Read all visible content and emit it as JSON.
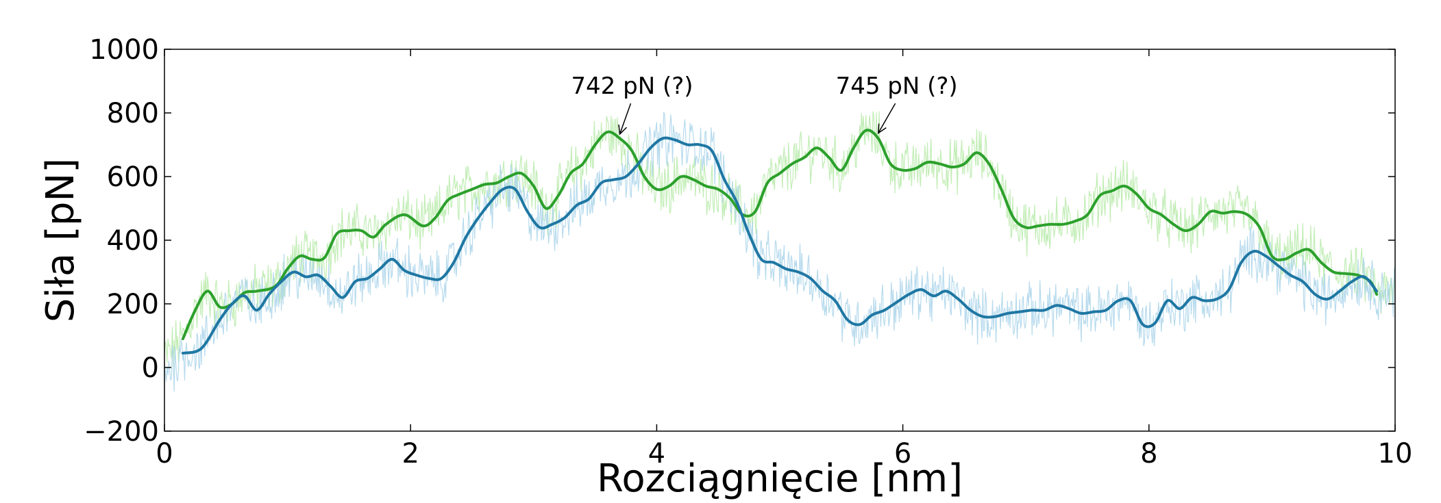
{
  "chart_data": {
    "type": "line",
    "title": "",
    "xlabel": "Rozciągnięcie [nm]",
    "ylabel": "Siła [pN]",
    "xlim": [
      0,
      10
    ],
    "ylim": [
      -200,
      1000
    ],
    "xticks": [
      0,
      2,
      4,
      6,
      8,
      10
    ],
    "xtick_labels": [
      "0",
      "2",
      "4",
      "6",
      "8",
      "10"
    ],
    "yticks": [
      -200,
      0,
      200,
      400,
      600,
      800,
      1000
    ],
    "ytick_labels": [
      "−200",
      "0",
      "200",
      "400",
      "600",
      "800",
      "1000"
    ],
    "grid": false,
    "legend": "none",
    "series": [
      {
        "color": "#2ca02c",
        "raw_color": "#b6eaa8",
        "x": [
          0.15,
          0.25,
          0.35,
          0.45,
          0.55,
          0.65,
          0.75,
          0.9,
          1.0,
          1.1,
          1.2,
          1.3,
          1.4,
          1.5,
          1.6,
          1.7,
          1.8,
          1.95,
          2.1,
          2.2,
          2.3,
          2.4,
          2.5,
          2.6,
          2.7,
          2.8,
          2.9,
          3.0,
          3.1,
          3.2,
          3.3,
          3.4,
          3.5,
          3.6,
          3.7,
          3.8,
          3.9,
          4.0,
          4.1,
          4.2,
          4.3,
          4.4,
          4.5,
          4.6,
          4.7,
          4.8,
          4.9,
          5.0,
          5.1,
          5.2,
          5.3,
          5.4,
          5.5,
          5.6,
          5.7,
          5.8,
          5.9,
          6.0,
          6.1,
          6.2,
          6.3,
          6.4,
          6.5,
          6.6,
          6.7,
          6.8,
          6.9,
          7.0,
          7.1,
          7.2,
          7.3,
          7.4,
          7.5,
          7.6,
          7.7,
          7.8,
          7.9,
          8.0,
          8.1,
          8.2,
          8.3,
          8.4,
          8.5,
          8.6,
          8.7,
          8.8,
          8.9,
          9.0,
          9.1,
          9.2,
          9.3,
          9.4,
          9.5,
          9.6,
          9.7,
          9.8,
          9.85
        ],
        "y": [
          90,
          180,
          240,
          190,
          200,
          235,
          240,
          255,
          310,
          350,
          340,
          345,
          420,
          430,
          430,
          410,
          450,
          480,
          445,
          470,
          525,
          545,
          560,
          575,
          580,
          600,
          610,
          570,
          500,
          540,
          610,
          640,
          700,
          740,
          720,
          680,
          600,
          560,
          570,
          600,
          590,
          570,
          560,
          530,
          480,
          490,
          580,
          610,
          640,
          660,
          690,
          660,
          620,
          690,
          745,
          720,
          640,
          620,
          625,
          645,
          640,
          630,
          640,
          675,
          640,
          560,
          470,
          440,
          445,
          450,
          450,
          460,
          480,
          540,
          555,
          570,
          545,
          500,
          480,
          450,
          430,
          450,
          490,
          485,
          490,
          480,
          440,
          350,
          340,
          360,
          370,
          330,
          300,
          295,
          290,
          270,
          230
        ]
      },
      {
        "color": "#1f77a3",
        "raw_color": "#a9d3ea",
        "x": [
          0.15,
          0.3,
          0.45,
          0.55,
          0.65,
          0.75,
          0.85,
          0.95,
          1.05,
          1.15,
          1.25,
          1.35,
          1.45,
          1.55,
          1.65,
          1.75,
          1.85,
          1.95,
          2.05,
          2.15,
          2.25,
          2.35,
          2.45,
          2.55,
          2.65,
          2.75,
          2.85,
          2.95,
          3.05,
          3.15,
          3.25,
          3.35,
          3.45,
          3.55,
          3.65,
          3.75,
          3.85,
          3.95,
          4.05,
          4.15,
          4.25,
          4.35,
          4.45,
          4.55,
          4.65,
          4.75,
          4.85,
          4.95,
          5.05,
          5.15,
          5.25,
          5.35,
          5.45,
          5.55,
          5.65,
          5.75,
          5.85,
          5.95,
          6.05,
          6.15,
          6.25,
          6.35,
          6.45,
          6.55,
          6.65,
          6.75,
          6.85,
          6.95,
          7.05,
          7.15,
          7.25,
          7.35,
          7.45,
          7.55,
          7.65,
          7.75,
          7.85,
          7.95,
          8.05,
          8.15,
          8.25,
          8.35,
          8.45,
          8.55,
          8.65,
          8.75,
          8.85,
          8.95,
          9.05,
          9.15,
          9.25,
          9.35,
          9.45,
          9.55,
          9.65,
          9.75,
          9.85
        ],
        "y": [
          45,
          60,
          150,
          200,
          225,
          180,
          230,
          270,
          300,
          285,
          290,
          255,
          220,
          270,
          280,
          310,
          340,
          305,
          290,
          280,
          280,
          330,
          410,
          470,
          520,
          560,
          560,
          490,
          440,
          450,
          470,
          510,
          530,
          580,
          590,
          600,
          640,
          690,
          720,
          715,
          700,
          700,
          680,
          590,
          520,
          420,
          340,
          330,
          310,
          300,
          280,
          240,
          210,
          150,
          135,
          165,
          180,
          205,
          230,
          245,
          225,
          240,
          215,
          180,
          160,
          160,
          170,
          175,
          180,
          180,
          195,
          185,
          170,
          175,
          180,
          210,
          210,
          135,
          140,
          210,
          185,
          220,
          210,
          215,
          245,
          330,
          365,
          350,
          320,
          290,
          270,
          230,
          215,
          240,
          270,
          285,
          240
        ]
      }
    ],
    "annotations": [
      {
        "text": "742 pN (?)",
        "x": 3.7,
        "y": 742,
        "text_x": 3.8,
        "text_y": 860
      },
      {
        "text": "745 pN (?)",
        "x": 5.8,
        "y": 745,
        "text_x": 5.95,
        "text_y": 860
      }
    ]
  }
}
